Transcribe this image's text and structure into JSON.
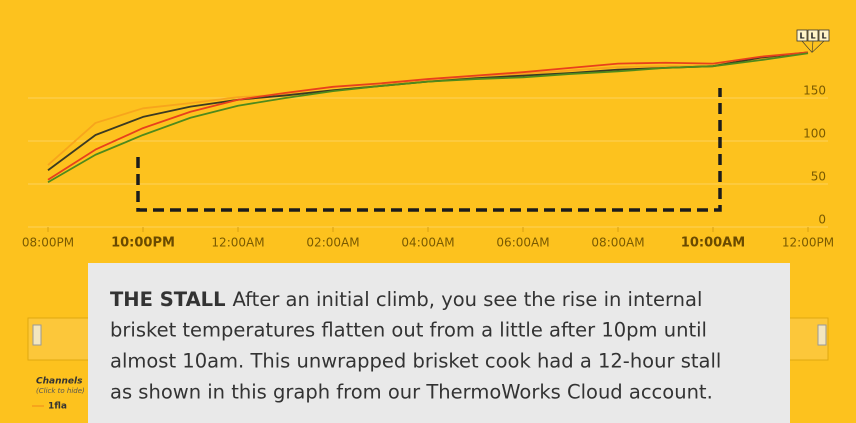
{
  "chart_data": {
    "type": "line",
    "categories": [
      "08:00PM",
      null,
      "10:00PM",
      null,
      "12:00AM",
      null,
      "02:00AM",
      null,
      "04:00AM",
      null,
      "06:00AM",
      null,
      "08:00AM",
      null,
      "10:00AM",
      null,
      "12:00PM"
    ],
    "series": [
      {
        "color": "#f7a51c",
        "values": [
          72,
          121,
          138,
          144,
          151,
          154,
          159,
          165,
          170,
          174,
          178,
          182,
          186,
          187,
          187,
          196,
          203
        ]
      },
      {
        "color": "#3b3a22",
        "values": [
          66,
          107,
          128,
          140,
          148,
          153,
          159,
          164,
          169,
          173,
          176,
          179,
          183,
          185,
          187,
          197,
          203
        ]
      },
      {
        "color": "#e8401c",
        "values": [
          55,
          90,
          115,
          134,
          148,
          156,
          163,
          167,
          172,
          176,
          180,
          185,
          190,
          191,
          190,
          198,
          203
        ]
      },
      {
        "color": "#4f8a1c",
        "values": [
          52,
          84,
          107,
          127,
          141,
          150,
          158,
          164,
          169,
          172,
          174,
          178,
          181,
          185,
          187,
          194,
          202
        ]
      }
    ],
    "ylim": [
      0,
      250
    ],
    "yticks": [
      0,
      50,
      100,
      150
    ],
    "grid": true,
    "markers": [
      "L",
      "L",
      "L"
    ],
    "legend": {
      "title": "Channels",
      "subtitle": "(Click to hide)",
      "entry": "1fla"
    },
    "annotation": {
      "heading": "THE STALL",
      "lines": [
        "After an initial climb, you see the rise in internal",
        "brisket temperatures flatten out from a little after 10pm until",
        "almost 10am. This unwrapped brisket cook had a 12-hour stall",
        "as shown in this graph from our ThermoWorks Cloud account."
      ]
    }
  }
}
